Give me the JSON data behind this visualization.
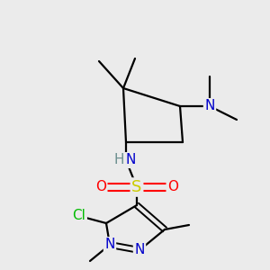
{
  "background_color": "#ebebeb",
  "figsize": [
    3.0,
    3.0
  ],
  "dpi": 100,
  "colors": {
    "C": "#000000",
    "N": "#0000cc",
    "O": "#ff0000",
    "S": "#cccc00",
    "Cl": "#00bb00",
    "H": "#6b8e8e",
    "bond": "#000000",
    "bg": "#ebebeb"
  },
  "bond_lw": 1.6,
  "font_size_atom": 11,
  "font_size_small": 9
}
